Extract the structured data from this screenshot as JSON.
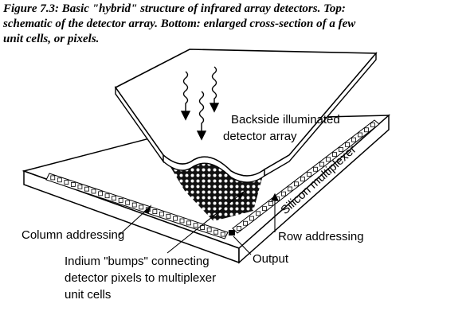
{
  "caption": {
    "line1": "Figure 7.3: Basic \"hybrid\" structure of infrared array detectors. Top:",
    "line2": "schematic of the detector array. Bottom: enlarged cross-section of a few",
    "line3": "unit cells, or pixels."
  },
  "labels": {
    "backside_line1": "Backside illuminated",
    "backside_line2": "detector array",
    "multiplexer": "Silicon multiplexer",
    "column": "Column addressing",
    "row": "Row addressing",
    "indium_line1": "Indium \"bumps\" connecting",
    "indium_line2": "detector pixels to multiplexer",
    "indium_line3": "unit cells",
    "output": "Output"
  }
}
